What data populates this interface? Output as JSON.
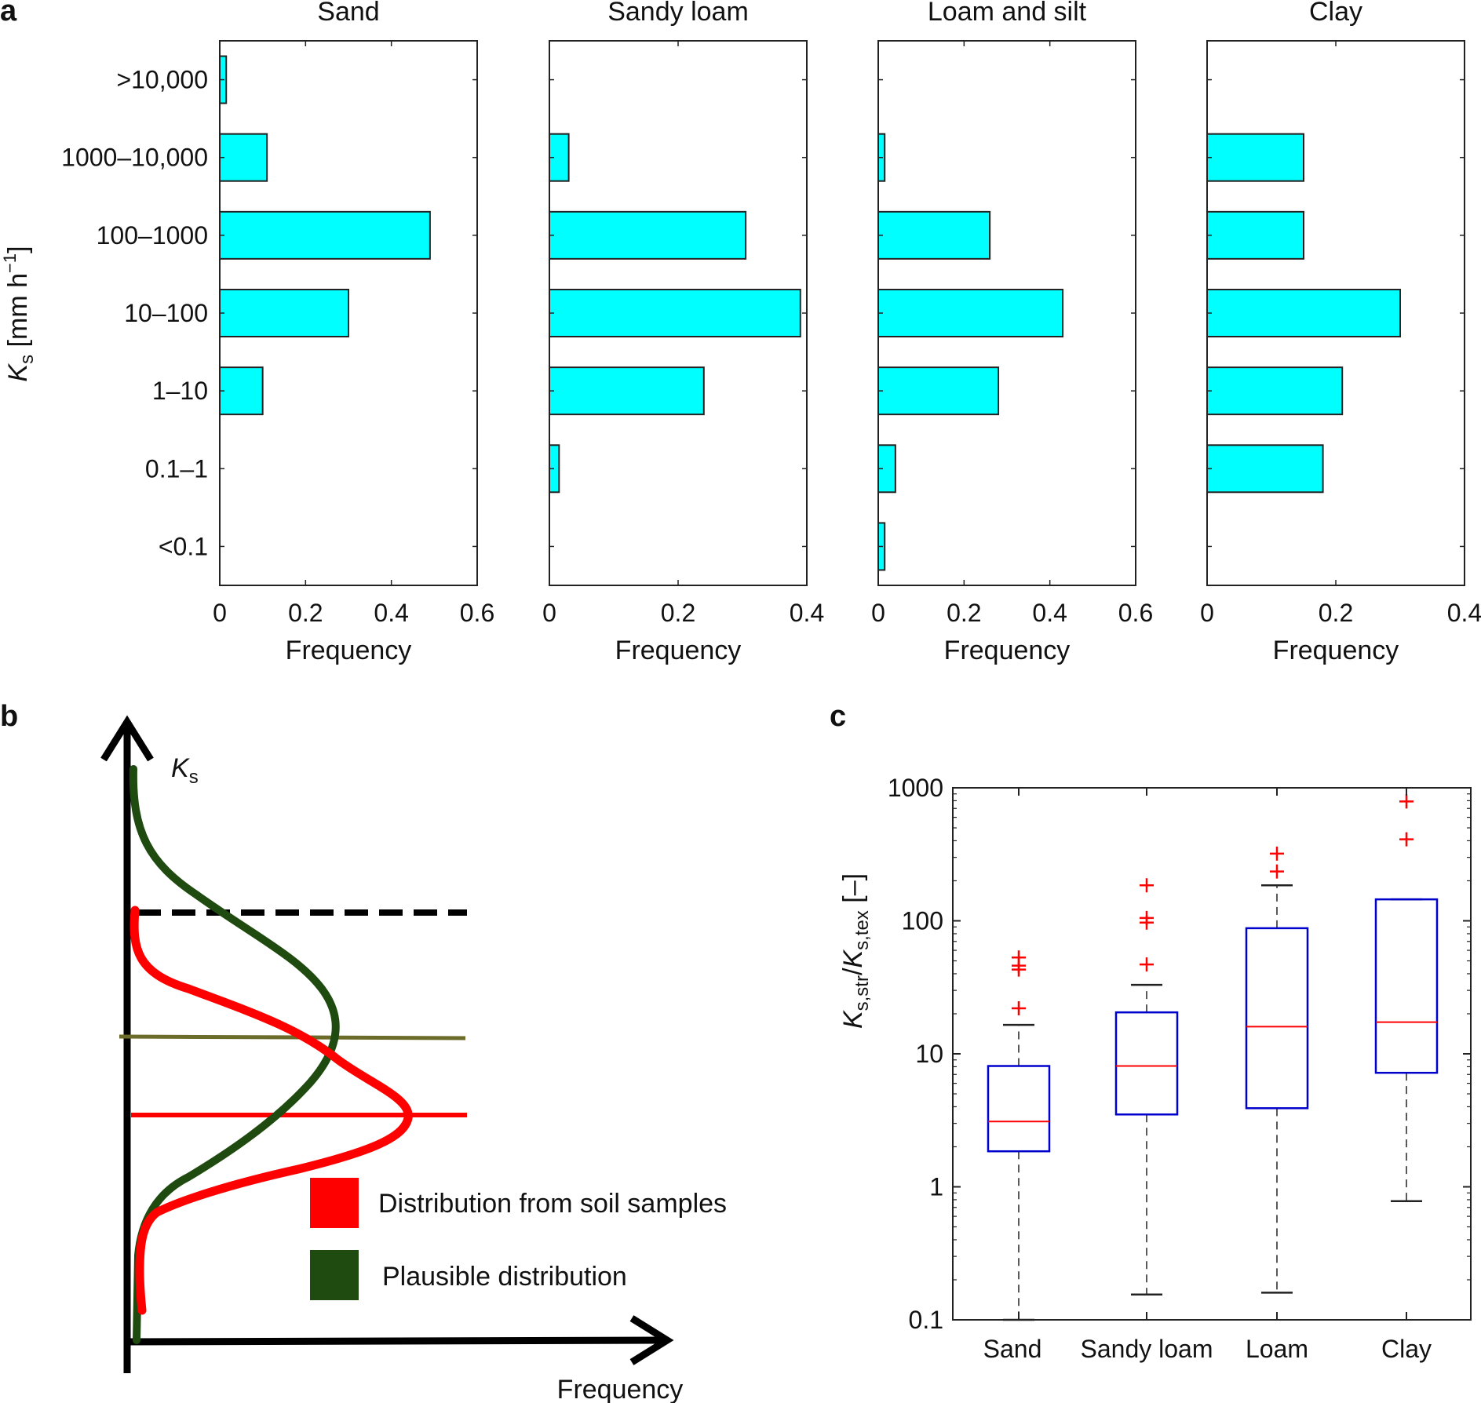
{
  "panel_labels": {
    "a": "a",
    "b": "b",
    "c": "c"
  },
  "chart_data": [
    {
      "type": "bar",
      "orientation": "horizontal",
      "title": "Sand",
      "categories": [
        "<0.1",
        "0.1–1",
        "1–10",
        "10–100",
        "100–1000",
        "1000–10,000",
        ">10,000"
      ],
      "values": [
        0,
        0,
        0.1,
        0.3,
        0.49,
        0.11,
        0.015
      ],
      "xlabel": "Frequency",
      "ylabel": "K_s [mm h^-1]",
      "ylabel_parts": {
        "sym": "K",
        "sub": "s",
        "unit": " [mm h",
        "exp": "−1",
        "close": "]"
      },
      "xlim": [
        0,
        0.6
      ],
      "xticks": [
        0,
        0.2,
        0.4,
        0.6
      ],
      "xtick_labels": [
        "0",
        "0.2",
        "0.4",
        "0.6"
      ],
      "color": "#00ffff"
    },
    {
      "type": "bar",
      "orientation": "horizontal",
      "title": "Sandy loam",
      "categories": [
        "<0.1",
        "0.1–1",
        "1–10",
        "10–100",
        "100–1000",
        "1000–10,000",
        ">10,000"
      ],
      "values": [
        0,
        0.015,
        0.24,
        0.39,
        0.305,
        0.03,
        0
      ],
      "xlabel": "Frequency",
      "xlim": [
        0,
        0.4
      ],
      "xticks": [
        0,
        0.2,
        0.4
      ],
      "xtick_labels": [
        "0",
        "0.2",
        "0.4"
      ],
      "color": "#00ffff"
    },
    {
      "type": "bar",
      "orientation": "horizontal",
      "title": "Loam and silt",
      "categories": [
        "<0.1",
        "0.1–1",
        "1–10",
        "10–100",
        "100–1000",
        "1000–10,000",
        ">10,000"
      ],
      "values": [
        0.015,
        0.04,
        0.28,
        0.43,
        0.26,
        0.015,
        0
      ],
      "xlabel": "Frequency",
      "xlim": [
        0,
        0.6
      ],
      "xticks": [
        0,
        0.2,
        0.4,
        0.6
      ],
      "xtick_labels": [
        "0",
        "0.2",
        "0.4",
        "0.6"
      ],
      "color": "#00ffff"
    },
    {
      "type": "bar",
      "orientation": "horizontal",
      "title": "Clay",
      "categories": [
        "<0.1",
        "0.1–1",
        "1–10",
        "10–100",
        "100–1000",
        "1000–10,000",
        ">10,000"
      ],
      "values": [
        0,
        0.18,
        0.21,
        0.3,
        0.15,
        0.15,
        0
      ],
      "xlabel": "Frequency",
      "xlim": [
        0,
        0.4
      ],
      "xticks": [
        0,
        0.2,
        0.4
      ],
      "xtick_labels": [
        "0",
        "0.2",
        "0.4"
      ],
      "color": "#00ffff"
    },
    {
      "type": "line",
      "title": "",
      "schematic": true,
      "xlabel": "Frequency",
      "ylabel": "K_s",
      "ylabel_parts": {
        "sym": "K",
        "sub": "s"
      },
      "series": [
        {
          "name": "Distribution from soil samples",
          "color": "#ff0000",
          "shape": "narrow peaked distribution"
        },
        {
          "name": "Plausible distribution",
          "color": "#1f4a10",
          "shape": "broader distribution shifted to higher K_s"
        }
      ],
      "reference_lines": [
        {
          "style": "dashed",
          "color": "#000000",
          "meaning": "upper bound"
        },
        {
          "style": "solid",
          "color": "#6b6b2a",
          "meaning": "mode of plausible distribution"
        },
        {
          "style": "solid",
          "color": "#ff0000",
          "meaning": "mode of soil-sample distribution"
        }
      ],
      "legend": [
        {
          "label": "Distribution from soil samples",
          "color": "#ff0000"
        },
        {
          "label": "Plausible distribution",
          "color": "#1f4a10"
        }
      ]
    },
    {
      "type": "box",
      "title": "",
      "categories": [
        "Sand",
        "Sandy loam",
        "Loam",
        "Clay"
      ],
      "yscale": "log",
      "ylim": [
        0.1,
        1000
      ],
      "yticks": [
        0.1,
        1,
        10,
        100,
        1000
      ],
      "ytick_labels": [
        "0.1",
        "1",
        "10",
        "100",
        "1000"
      ],
      "xlabel": "",
      "ylabel": "K_s,str/K_s,tex [–]",
      "ylabel_parts": {
        "sym1": "K",
        "sub1": "s,str",
        "slash": "/",
        "sym2": "K",
        "sub2": "s,tex",
        "tail": " [–]"
      },
      "box_color": "#0000cc",
      "median_color": "#ff0000",
      "outlier_color": "#ff0000",
      "boxes": [
        {
          "label": "Sand",
          "whisker_low": 0.1,
          "q1": 1.85,
          "median": 3.1,
          "q3": 8.1,
          "whisker_high": 16.5,
          "outliers": [
            22,
            43,
            46,
            53
          ]
        },
        {
          "label": "Sandy loam",
          "whisker_low": 0.155,
          "q1": 3.5,
          "median": 8.1,
          "q3": 20.5,
          "whisker_high": 33,
          "outliers": [
            47,
            97,
            105,
            185
          ]
        },
        {
          "label": "Loam",
          "whisker_low": 0.16,
          "q1": 3.9,
          "median": 16,
          "q3": 88,
          "whisker_high": 185,
          "outliers": [
            235,
            320
          ]
        },
        {
          "label": "Clay",
          "whisker_low": 0.78,
          "q1": 7.2,
          "median": 17.3,
          "q3": 145,
          "whisker_high": 145,
          "outliers": [
            410,
            790
          ]
        }
      ]
    }
  ]
}
